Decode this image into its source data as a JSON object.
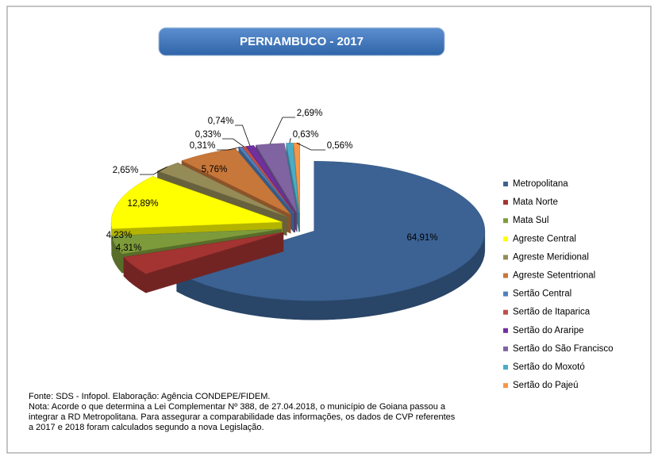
{
  "chart_data": {
    "type": "pie",
    "title": "PERNAMBUCO - 2017",
    "categories": [
      "Metropolitana",
      "Mata Norte",
      "Mata Sul",
      "Agreste Central",
      "Agreste Meridional",
      "Agreste Setentrional",
      "Sertão Central",
      "Sertão de Itaparica",
      "Sertão do Araripe",
      "Sertão do São Francisco",
      "Sertão do Moxotó",
      "Sertão do Pajeú"
    ],
    "values": [
      64.91,
      4.31,
      4.23,
      12.89,
      2.65,
      5.76,
      0.31,
      0.33,
      0.74,
      2.69,
      0.63,
      0.56
    ],
    "value_labels": [
      "64,91%",
      "4,31%",
      "4,23%",
      "12,89%",
      "2,65%",
      "5,76%",
      "0,31%",
      "0,33%",
      "0,74%",
      "2,69%",
      "0,63%",
      "0,56%"
    ],
    "colors": [
      "#3b6293",
      "#a33432",
      "#7e9b3c",
      "#ffff00",
      "#958b57",
      "#c8773a",
      "#4f81bd",
      "#c0504d",
      "#7030a0",
      "#8064a2",
      "#4bacc6",
      "#f79646"
    ],
    "legend": "right"
  },
  "notes": [
    "Fonte: SDS - Infopol. Elaboração: Agência CONDEPE/FIDEM.",
    "Nota: Acorde o que determina a Lei  Complementar Nº 388, de  27.04.2018, o município de Goiana passou a",
    "integrar a RD Metropolitana. Para assegurar a comparabilidade das informações, os dados de CVP referentes",
    "a  2017 e 2018 foram calculados segundo a nova  Legislação."
  ]
}
